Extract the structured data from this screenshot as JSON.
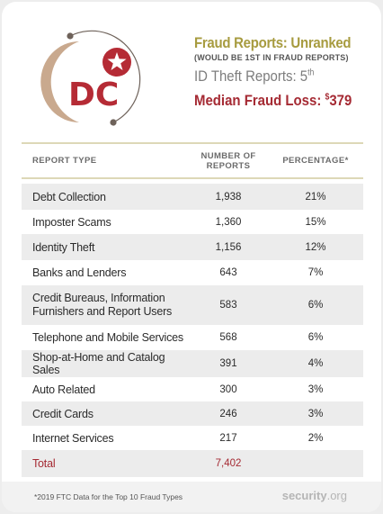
{
  "logo": {
    "text": "DC",
    "colors": {
      "red": "#b52b35",
      "sand": "#c9a98e",
      "dark": "#6e625a"
    }
  },
  "stats": {
    "fraud_reports": "Fraud Reports: Unranked",
    "fraud_note": "(WOULD BE 1ST IN FRAUD REPORTS)",
    "id_theft_prefix": "ID Theft Reports: 5",
    "id_theft_suffix": "th",
    "median_prefix": "Median Fraud Loss: ",
    "median_currency": "$",
    "median_value": "379"
  },
  "table": {
    "headers": {
      "type": "REPORT TYPE",
      "count_line1": "NUMBER OF",
      "count_line2": "REPORTS",
      "percentage": "PERCENTAGE*"
    },
    "rows": [
      {
        "type": "Debt Collection",
        "count": "1,938",
        "pct": "21%"
      },
      {
        "type": "Imposter Scams",
        "count": "1,360",
        "pct": "15%"
      },
      {
        "type": "Identity Theft",
        "count": "1,156",
        "pct": "12%"
      },
      {
        "type": "Banks and Lenders",
        "count": "643",
        "pct": "7%"
      },
      {
        "type_line1": "Credit Bureaus, Information",
        "type_line2": "Furnishers and Report Users",
        "count": "583",
        "pct": "6%"
      },
      {
        "type": "Telephone and Mobile Services",
        "count": "568",
        "pct": "6%"
      },
      {
        "type": "Shop-at-Home and Catalog Sales",
        "count": "391",
        "pct": "4%"
      },
      {
        "type": "Auto Related",
        "count": "300",
        "pct": "3%"
      },
      {
        "type": "Credit Cards",
        "count": "246",
        "pct": "3%"
      },
      {
        "type": "Internet Services",
        "count": "217",
        "pct": "2%"
      }
    ],
    "total": {
      "label": "Total",
      "count": "7,402"
    }
  },
  "footer": {
    "note": "*2019 FTC Data for the Top 10 Fraud Types",
    "brand_name": "security",
    "brand_tld": ".org"
  }
}
